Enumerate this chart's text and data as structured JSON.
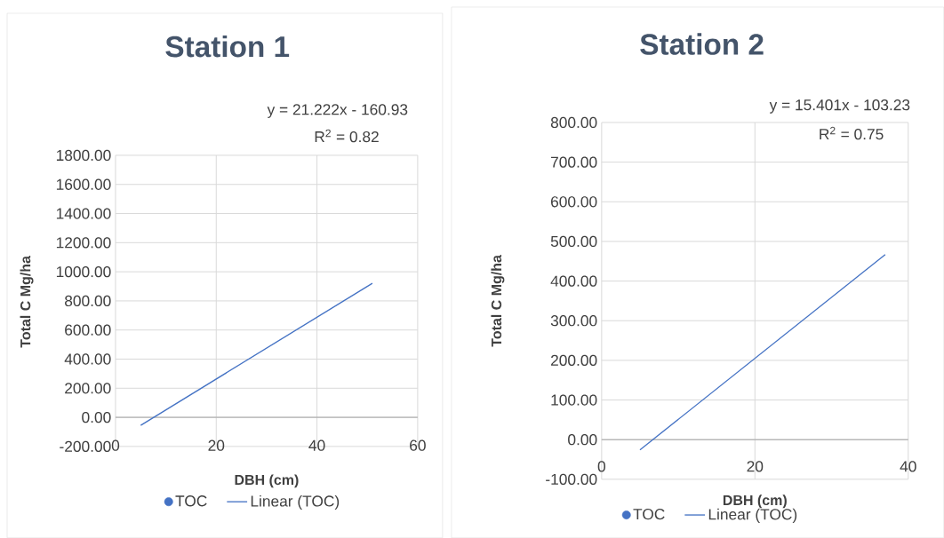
{
  "chart_data": [
    {
      "type": "scatter",
      "title": "Station 1",
      "xlabel": "DBH (cm)",
      "ylabel": "Total C Mg/ha",
      "xlim": [
        0,
        60
      ],
      "xticks": [
        0,
        20,
        40,
        60
      ],
      "ylim": [
        -200,
        1800
      ],
      "yticks": [
        {
          "value": -200,
          "label": "-200.00"
        },
        {
          "value": 0,
          "label": "0.00"
        },
        {
          "value": 200,
          "label": "200.00"
        },
        {
          "value": 400,
          "label": "400.00"
        },
        {
          "value": 600,
          "label": "600.00"
        },
        {
          "value": 800,
          "label": "800.00"
        },
        {
          "value": 1000,
          "label": "1000.00"
        },
        {
          "value": 1200,
          "label": "1200.00"
        },
        {
          "value": 1400,
          "label": "1400.00"
        },
        {
          "value": 1600,
          "label": "1600.00"
        },
        {
          "value": 1800,
          "label": "1800.00"
        }
      ],
      "grid": true,
      "legend": "bottom",
      "annotations": [
        "y = 21.222x - 160.93",
        "R$^{2}$ = 0.82"
      ],
      "series": [
        {
          "name": "TOC",
          "color": "#4472c4",
          "marker": "circle"
        },
        {
          "name": "Linear (TOC)",
          "type": "line",
          "color": "#4472c4",
          "marker": "none",
          "x": [
            5,
            51
          ],
          "values": [
            -55,
            921
          ]
        }
      ]
    },
    {
      "type": "scatter",
      "title": "Station 2",
      "xlabel": "DBH (cm)",
      "ylabel": "Total C Mg/ha",
      "xlim": [
        0,
        40
      ],
      "xticks": [
        0,
        20,
        40
      ],
      "ylim": [
        -100,
        800
      ],
      "yticks": [
        {
          "value": -100,
          "label": "-100.00"
        },
        {
          "value": 0,
          "label": "0.00"
        },
        {
          "value": 100,
          "label": "100.00"
        },
        {
          "value": 200,
          "label": "200.00"
        },
        {
          "value": 300,
          "label": "300.00"
        },
        {
          "value": 400,
          "label": "400.00"
        },
        {
          "value": 500,
          "label": "500.00"
        },
        {
          "value": 600,
          "label": "600.00"
        },
        {
          "value": 700,
          "label": "700.00"
        },
        {
          "value": 800,
          "label": "800.00"
        }
      ],
      "grid": true,
      "legend": "bottom",
      "annotations": [
        "y = 15.401x - 103.23",
        "R$^{2}$ = 0.75"
      ],
      "series": [
        {
          "name": "TOC",
          "color": "#4472c4",
          "marker": "circle"
        },
        {
          "name": "Linear (TOC)",
          "type": "line",
          "color": "#4472c4",
          "marker": "none",
          "x": [
            5,
            37
          ],
          "values": [
            -26,
            467
          ]
        }
      ]
    }
  ]
}
